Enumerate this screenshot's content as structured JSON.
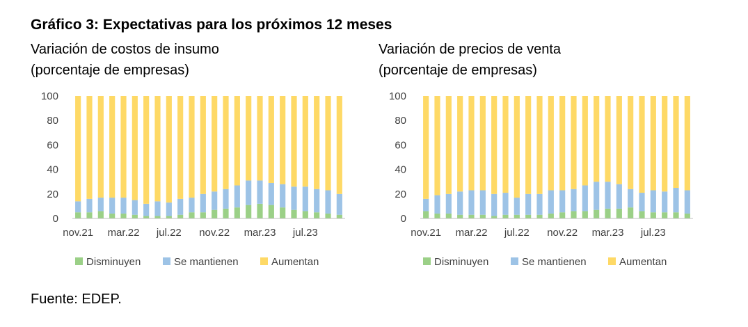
{
  "figure": {
    "title": "Gráfico 3: Expectativas para los próximos 12 meses",
    "source": "Fuente: EDEP."
  },
  "colors": {
    "disminuyen": "#9bd087",
    "se_mantienen": "#9dc3e6",
    "aumentan": "#fed966",
    "axis": "#bfbfbf"
  },
  "chart_data": [
    {
      "type": "bar",
      "stacked": true,
      "title": "Variación de costos de insumo",
      "subtitle": "(porcentaje de empresas)",
      "categories": [
        "nov.21",
        "dic.21",
        "ene.22",
        "feb.22",
        "mar.22",
        "abr.22",
        "may.22",
        "jun.22",
        "jul.22",
        "ago.22",
        "sep.22",
        "oct.22",
        "nov.22",
        "dic.22",
        "ene.23",
        "feb.23",
        "mar.23",
        "abr.23",
        "may.23",
        "jun.23",
        "jul.23",
        "ago.23",
        "sep.23",
        "oct.23"
      ],
      "tick_labels": [
        "nov.21",
        "mar.22",
        "jul.22",
        "nov.22",
        "mar.23",
        "jul.23"
      ],
      "ylim": [
        0,
        100
      ],
      "yticks": [
        0,
        20,
        40,
        60,
        80,
        100
      ],
      "legend_position": "bottom",
      "series": [
        {
          "name": "Disminuyen",
          "values": [
            5,
            5,
            6,
            4,
            4,
            3,
            2,
            2,
            2,
            3,
            5,
            5,
            7,
            8,
            9,
            11,
            12,
            11,
            9,
            7,
            6,
            5,
            4,
            3
          ]
        },
        {
          "name": "Se mantienen",
          "values": [
            9,
            11,
            11,
            13,
            13,
            12,
            10,
            12,
            11,
            13,
            12,
            15,
            15,
            16,
            18,
            20,
            19,
            18,
            19,
            19,
            20,
            19,
            19,
            17
          ]
        },
        {
          "name": "Aumentan",
          "values": [
            86,
            84,
            83,
            83,
            83,
            85,
            88,
            86,
            87,
            84,
            83,
            80,
            78,
            76,
            73,
            69,
            69,
            71,
            72,
            74,
            74,
            76,
            77,
            80
          ]
        }
      ]
    },
    {
      "type": "bar",
      "stacked": true,
      "title": "Variación de precios de venta",
      "subtitle": "(porcentaje de empresas)",
      "categories": [
        "nov.21",
        "dic.21",
        "ene.22",
        "feb.22",
        "mar.22",
        "abr.22",
        "may.22",
        "jun.22",
        "jul.22",
        "ago.22",
        "sep.22",
        "oct.22",
        "nov.22",
        "dic.22",
        "ene.23",
        "feb.23",
        "mar.23",
        "abr.23",
        "may.23",
        "jun.23",
        "jul.23",
        "ago.23",
        "sep.23",
        "oct.23"
      ],
      "tick_labels": [
        "nov.21",
        "mar.22",
        "jul.22",
        "nov.22",
        "mar.23",
        "jul.23"
      ],
      "ylim": [
        0,
        100
      ],
      "yticks": [
        0,
        20,
        40,
        60,
        80,
        100
      ],
      "legend_position": "bottom",
      "series": [
        {
          "name": "Disminuyen",
          "values": [
            6,
            4,
            4,
            3,
            3,
            3,
            2,
            3,
            3,
            3,
            3,
            4,
            5,
            6,
            6,
            7,
            8,
            8,
            9,
            6,
            5,
            5,
            5,
            4
          ]
        },
        {
          "name": "Se mantienen",
          "values": [
            10,
            15,
            16,
            19,
            20,
            20,
            18,
            18,
            14,
            17,
            17,
            19,
            18,
            18,
            21,
            23,
            22,
            20,
            15,
            15,
            18,
            17,
            20,
            19
          ]
        },
        {
          "name": "Aumentan",
          "values": [
            84,
            81,
            80,
            78,
            77,
            77,
            80,
            79,
            83,
            80,
            80,
            77,
            77,
            76,
            73,
            70,
            70,
            72,
            76,
            79,
            77,
            78,
            75,
            77
          ]
        }
      ]
    }
  ]
}
